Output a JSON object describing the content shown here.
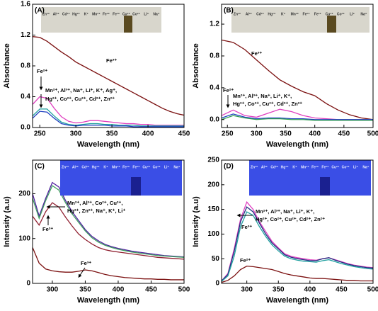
{
  "chart_data": [
    {
      "type": "line",
      "panel_label": "(A)",
      "xlabel": "Wavelength (nm)",
      "ylabel": "Absorbance",
      "xlim": [
        240,
        450
      ],
      "ylim": [
        0,
        1.6
      ],
      "xticks": [
        250,
        300,
        350,
        400,
        450
      ],
      "yticks": [
        {
          "value": 0,
          "label": "0.0"
        },
        0.4,
        0.8,
        1.2,
        1.6
      ],
      "x": [
        240,
        250,
        260,
        270,
        280,
        290,
        300,
        310,
        320,
        330,
        340,
        350,
        360,
        370,
        380,
        390,
        400,
        410,
        420,
        430,
        440,
        450
      ],
      "series": [
        {
          "color": "#7b1010",
          "values": [
            1.18,
            1.17,
            1.12,
            1.05,
            0.98,
            0.92,
            0.85,
            0.8,
            0.75,
            0.7,
            0.65,
            0.6,
            0.55,
            0.5,
            0.45,
            0.4,
            0.35,
            0.3,
            0.25,
            0.21,
            0.18,
            0.16
          ]
        },
        {
          "color": "#e040c0",
          "values": [
            0.3,
            0.4,
            0.38,
            0.25,
            0.14,
            0.08,
            0.06,
            0.07,
            0.09,
            0.09,
            0.08,
            0.07,
            0.06,
            0.05,
            0.05,
            0.04,
            0.04,
            0.03,
            0.03,
            0.03,
            0.03,
            0.03
          ]
        },
        {
          "color": "#20a0a0",
          "values": [
            0.15,
            0.24,
            0.24,
            0.15,
            0.07,
            0.04,
            0.03,
            0.04,
            0.05,
            0.05,
            0.04,
            0.04,
            0.03,
            0.03,
            0.03,
            0.02,
            0.02,
            0.02,
            0.02,
            0.02,
            0.02,
            0.02
          ]
        },
        {
          "color": "#2040c0",
          "values": [
            0.12,
            0.21,
            0.2,
            0.12,
            0.05,
            0.03,
            0.02,
            0.03,
            0.03,
            0.03,
            0.03,
            0.02,
            0.02,
            0.02,
            0.01,
            0.01,
            0.01,
            0.01,
            0.01,
            0.01,
            0.01,
            0.01
          ]
        }
      ],
      "annotations": [
        "Fe³⁺",
        "Fe²⁺",
        "Mn²⁺, Al³⁺, Na⁺, Li⁺, K⁺, Ag⁺,",
        "Hg²⁺, Co²⁺, Cu²⁺, Cd²⁺, Zn²⁺"
      ],
      "inset_labels": [
        "Zn²⁺",
        "Al³⁺",
        "Cd²⁺",
        "Hg²⁺",
        "K⁺",
        "Mn²⁺",
        "Fe²⁺",
        "Fe³⁺",
        "Cu²⁺",
        "Co²⁺",
        "Li⁺",
        "Na⁺"
      ]
    },
    {
      "type": "line",
      "panel_label": "(B)",
      "xlabel": "Wavelength (nm)",
      "ylabel": "Absorbance",
      "xlim": [
        240,
        500
      ],
      "ylim": [
        -0.1,
        1.45
      ],
      "xticks": [
        250,
        300,
        350,
        400,
        450,
        500
      ],
      "yticks": [
        {
          "value": 0,
          "label": "0.0"
        },
        0.4,
        0.8,
        1.2
      ],
      "x": [
        240,
        260,
        280,
        300,
        320,
        340,
        360,
        380,
        400,
        420,
        440,
        460,
        480,
        500
      ],
      "series": [
        {
          "color": "#7b1010",
          "values": [
            1.0,
            0.97,
            0.88,
            0.75,
            0.62,
            0.5,
            0.42,
            0.35,
            0.3,
            0.2,
            0.12,
            0.06,
            0.02,
            0.0
          ]
        },
        {
          "color": "#e040c0",
          "values": [
            0.05,
            0.12,
            0.05,
            0.03,
            0.08,
            0.13,
            0.1,
            0.05,
            0.02,
            0.01,
            0.0,
            0.0,
            0.0,
            0.0
          ]
        },
        {
          "color": "#2040c0",
          "values": [
            0.02,
            0.07,
            0.03,
            0.01,
            0.02,
            0.02,
            0.01,
            0.01,
            0.0,
            0.0,
            0.0,
            0.0,
            0.0,
            0.0
          ]
        },
        {
          "color": "#30a050",
          "values": [
            0.0,
            0.05,
            0.02,
            0.0,
            0.01,
            0.01,
            0.0,
            0.0,
            -0.01,
            -0.01,
            -0.01,
            -0.01,
            -0.01,
            -0.01
          ]
        }
      ],
      "annotations": [
        "Fe³⁺",
        "Fe²⁺",
        "Mn²⁺, Al³⁺, Na⁺, Li⁺, K⁺,",
        "Hg²⁺, Co²⁺, Cu²⁺, Cd²⁺, Zn²⁺"
      ],
      "inset_labels": [
        "Zn²⁺",
        "Al³⁺",
        "Cd²⁺",
        "Hg²⁺",
        "K⁺",
        "Mn²⁺",
        "Fe²⁺",
        "Fe³⁺",
        "Cu²⁺",
        "Co²⁺",
        "Li⁺",
        "Na⁺"
      ]
    },
    {
      "type": "line",
      "panel_label": "(C)",
      "xlabel": "Wavelength (nm)",
      "ylabel": "Intensity (a.u)",
      "xlim": [
        270,
        500
      ],
      "ylim": [
        0,
        275
      ],
      "xticks": [
        300,
        350,
        400,
        450,
        500
      ],
      "yticks": [
        0,
        100,
        200
      ],
      "x": [
        270,
        280,
        290,
        300,
        310,
        320,
        330,
        340,
        350,
        360,
        370,
        380,
        390,
        400,
        410,
        420,
        430,
        440,
        450,
        460,
        470,
        480,
        490,
        500
      ],
      "series": [
        {
          "color": "#5020a0",
          "values": [
            200,
            150,
            190,
            225,
            215,
            185,
            160,
            140,
            120,
            105,
            95,
            87,
            82,
            78,
            75,
            72,
            70,
            68,
            66,
            64,
            62,
            61,
            60,
            59
          ]
        },
        {
          "color": "#40a060",
          "values": [
            190,
            145,
            185,
            218,
            208,
            180,
            155,
            136,
            117,
            102,
            92,
            85,
            80,
            76,
            73,
            70,
            68,
            66,
            64,
            62,
            61,
            60,
            59,
            58
          ]
        },
        {
          "color": "#902030",
          "values": [
            150,
            130,
            160,
            180,
            170,
            148,
            128,
            110,
            98,
            88,
            80,
            75,
            72,
            70,
            68,
            66,
            64,
            62,
            60,
            58,
            57,
            56,
            55,
            54
          ]
        },
        {
          "color": "#7b1010",
          "values": [
            80,
            45,
            32,
            28,
            26,
            25,
            25,
            27,
            30,
            28,
            24,
            20,
            17,
            15,
            13,
            12,
            11,
            10,
            10,
            9,
            9,
            8,
            8,
            8
          ]
        }
      ],
      "annotations": [
        "Mn²⁺, Al³⁺, Co²⁺, Cu²⁺,",
        "Hg²⁺, Zn²⁺, Na⁺, K⁺, Li⁺",
        "Fe²⁺",
        "Fe³⁺"
      ],
      "inset_labels": [
        "Zn²⁺",
        "Al³⁺",
        "Cd²⁺",
        "Hg²⁺",
        "K⁺",
        "Mn²⁺",
        "Fe²⁺",
        "Fe³⁺",
        "Cu²⁺",
        "Co²⁺",
        "Li⁺",
        "Na⁺"
      ]
    },
    {
      "type": "line",
      "panel_label": "(D)",
      "xlabel": "Wavelength (nm)",
      "ylabel": "Intensity (a.u)",
      "xlim": [
        260,
        500
      ],
      "ylim": [
        0,
        250
      ],
      "xticks": [
        300,
        350,
        400,
        450,
        500
      ],
      "yticks": [
        0,
        50,
        100,
        150,
        200,
        250
      ],
      "x": [
        260,
        270,
        280,
        290,
        300,
        310,
        320,
        330,
        340,
        350,
        360,
        370,
        380,
        390,
        400,
        410,
        420,
        430,
        440,
        450,
        460,
        470,
        480,
        490,
        500
      ],
      "series": [
        {
          "color": "#e040c0",
          "values": [
            5,
            20,
            70,
            130,
            165,
            150,
            125,
            105,
            85,
            72,
            60,
            55,
            52,
            50,
            48,
            47,
            50,
            52,
            48,
            44,
            40,
            37,
            35,
            33,
            32
          ]
        },
        {
          "color": "#203080",
          "values": [
            5,
            18,
            65,
            125,
            155,
            145,
            122,
            100,
            82,
            70,
            58,
            53,
            50,
            48,
            46,
            46,
            50,
            52,
            47,
            43,
            39,
            36,
            34,
            32,
            31
          ]
        },
        {
          "color": "#20a0a0",
          "values": [
            4,
            15,
            55,
            115,
            145,
            138,
            115,
            95,
            78,
            66,
            55,
            50,
            47,
            45,
            44,
            43,
            46,
            48,
            44,
            40,
            37,
            34,
            32,
            30,
            29
          ]
        },
        {
          "color": "#7b1010",
          "values": [
            2,
            6,
            15,
            28,
            35,
            34,
            32,
            30,
            28,
            24,
            20,
            17,
            15,
            13,
            11,
            10,
            10,
            9,
            8,
            7,
            6,
            6,
            5,
            5,
            5
          ]
        }
      ],
      "annotations": [
        "Mn²⁺, Al³⁺, Na⁺, Li⁺, K⁺,",
        "Hg²⁺, Co²⁺, Cu²⁺, Cd²⁺, Zn²⁺",
        "Fe³⁺",
        "Fe²⁺"
      ],
      "inset_labels": [
        "Zn²⁺",
        "Al³⁺",
        "Cd²⁺",
        "Hg²⁺",
        "K⁺",
        "Mn²⁺",
        "Fe²⁺",
        "Fe³⁺",
        "Cu²⁺",
        "Co²⁺",
        "Li⁺",
        "Na⁺"
      ]
    }
  ]
}
